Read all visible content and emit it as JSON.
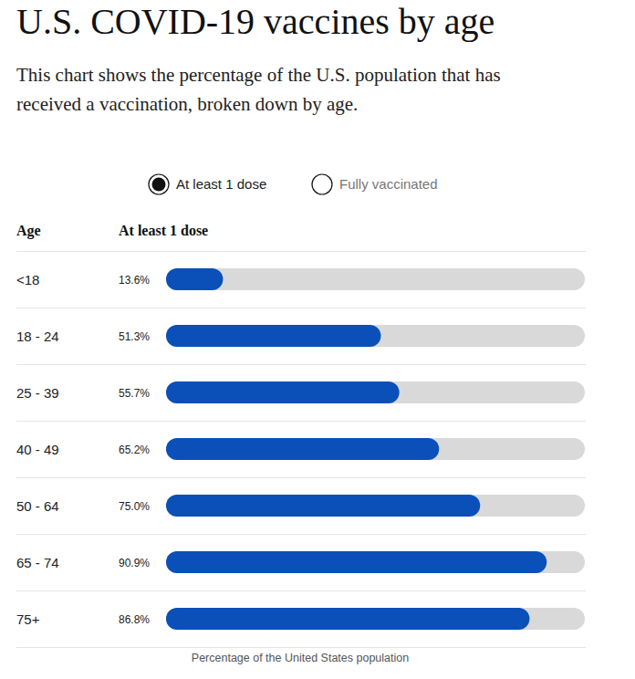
{
  "chart_data": {
    "type": "bar",
    "orientation": "horizontal",
    "title": "U.S. COVID-19 vaccines by age",
    "subtitle": "This chart shows the percentage of the U.S. population that has received a vaccination, broken down by age.",
    "controls": [
      "At least 1 dose",
      "Fully vaccinated"
    ],
    "category_header": "Age",
    "value_header": "At least 1 dose",
    "xlabel": "Percentage of the United States population",
    "categories": [
      "<18",
      "18 - 24",
      "25 - 39",
      "40 - 49",
      "50 - 64",
      "65 - 74",
      "75+"
    ],
    "values": [
      13.6,
      51.3,
      55.7,
      65.2,
      75.0,
      90.9,
      86.8
    ],
    "value_labels": [
      "13.6%",
      "51.3%",
      "55.7%",
      "65.2%",
      "75.0%",
      "90.9%",
      "86.8%"
    ],
    "color": "#0a50b8",
    "xlim": [
      0,
      100
    ],
    "data_labels": true,
    "tick_labels": "y",
    "grid": false
  }
}
